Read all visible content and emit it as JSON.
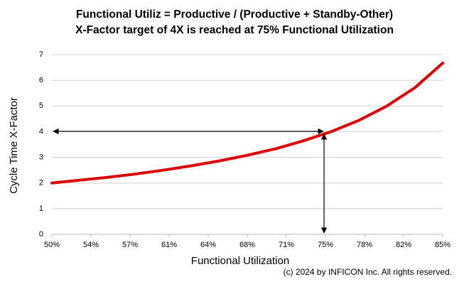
{
  "chart_data": {
    "type": "line",
    "title": "Functional Utiliz = Productive / (Productive + Standby-Other)",
    "subtitle": "X-Factor target of 4X is reached at 75% Functional Utilization",
    "x_label": "Functional Utilization",
    "y_label": "Cycle Time X-Factor",
    "x": [
      50,
      52.5,
      55,
      57.5,
      60,
      62.5,
      65,
      67.5,
      70,
      72.5,
      75,
      77.5,
      80,
      82.5,
      85
    ],
    "series": [
      {
        "name": "X-Factor",
        "color": "#dd0000",
        "values": [
          2,
          2.11,
          2.22,
          2.35,
          2.5,
          2.67,
          2.86,
          3.08,
          3.33,
          3.64,
          4,
          4.44,
          5,
          5.71,
          6.67
        ]
      }
    ],
    "xlim": [
      50,
      85
    ],
    "xticks": [
      {
        "value": 50,
        "label": "50%"
      },
      {
        "value": 53.5,
        "label": "54%"
      },
      {
        "value": 57,
        "label": "57%"
      },
      {
        "value": 60.5,
        "label": "61%"
      },
      {
        "value": 64,
        "label": "64%"
      },
      {
        "value": 67.5,
        "label": "68%"
      },
      {
        "value": 71,
        "label": "71%"
      },
      {
        "value": 74.5,
        "label": "75%"
      },
      {
        "value": 78,
        "label": "78%"
      },
      {
        "value": 81.5,
        "label": "82%"
      },
      {
        "value": 85,
        "label": "85%"
      }
    ],
    "ylim": [
      0,
      7
    ],
    "yticks": [
      0,
      1,
      2,
      3,
      4,
      5,
      6,
      7
    ],
    "grid": true,
    "copyright": "(c) 2024 by INFICON Inc. All rights reserved."
  }
}
